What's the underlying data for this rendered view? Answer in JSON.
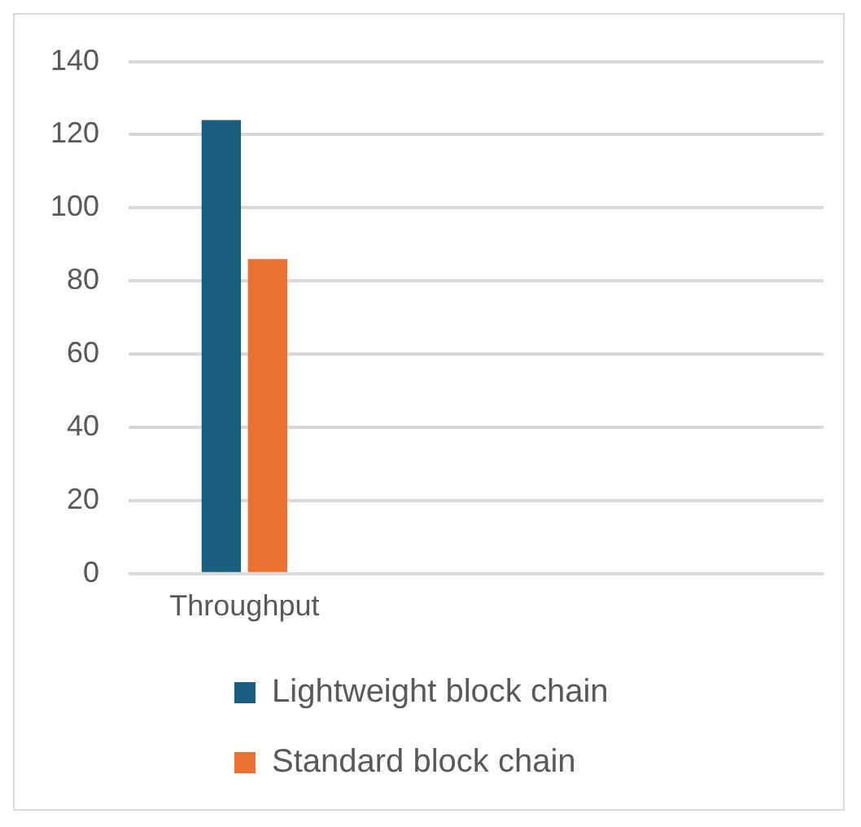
{
  "chart_data": {
    "type": "bar",
    "categories": [
      "Throughput",
      null,
      null
    ],
    "series": [
      {
        "name": "Lightweight block chain",
        "color": "#1a5e80",
        "values": [
          124,
          null,
          null
        ]
      },
      {
        "name": "Standard block chain",
        "color": "#e97132",
        "values": [
          86,
          null,
          null
        ]
      }
    ],
    "ylim": [
      0,
      140
    ],
    "yticks": [
      0,
      20,
      40,
      60,
      80,
      100,
      120,
      140
    ],
    "grid": "y",
    "legend": "bottom"
  }
}
